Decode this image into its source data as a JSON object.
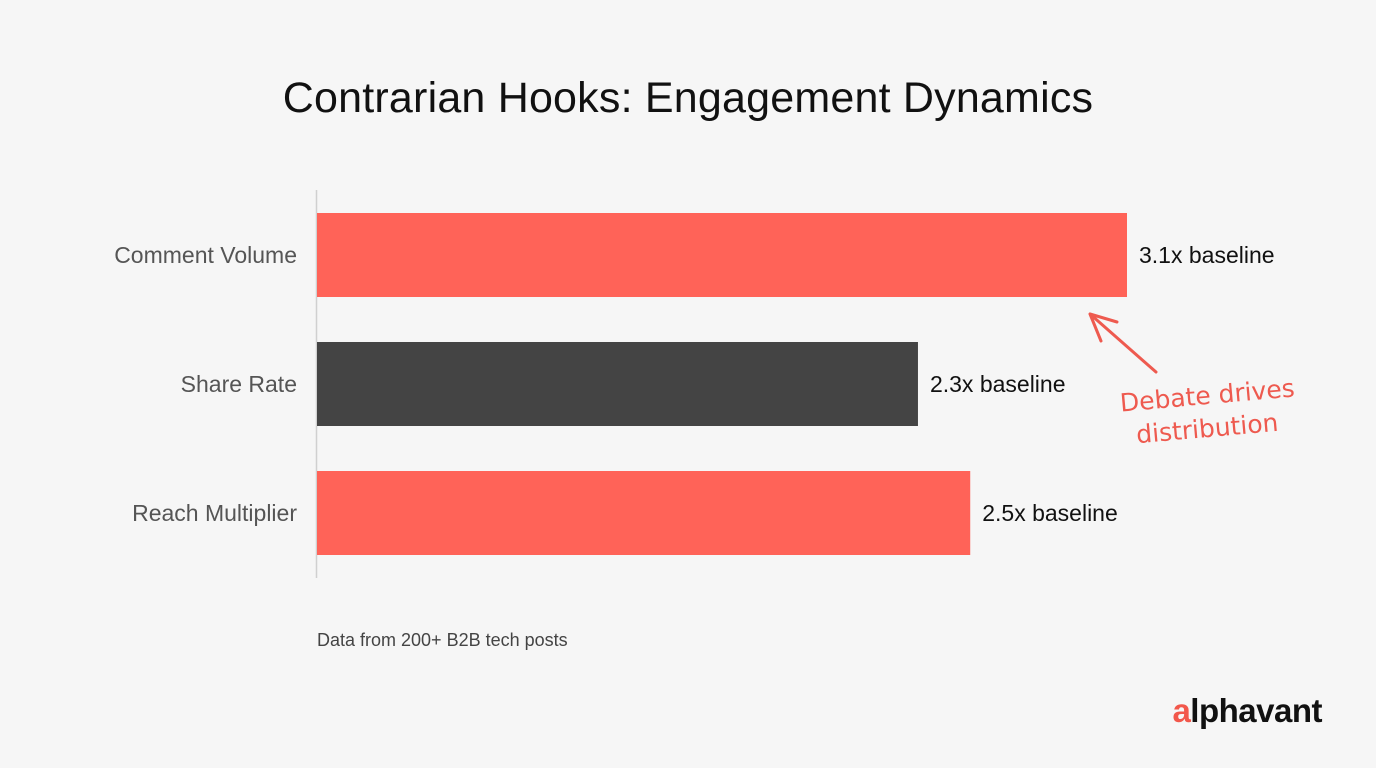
{
  "title": "Contrarian Hooks: Engagement Dynamics",
  "footnote": "Data from 200+ B2B tech posts",
  "logo": {
    "accent": "a",
    "rest": "lphavant",
    "accent_color": "#f2574b"
  },
  "annotation": {
    "line1": "Debate drives",
    "line2": "distribution",
    "color": "#ee5a4f"
  },
  "chart_data": {
    "type": "bar",
    "orientation": "horizontal",
    "categories": [
      "Comment Volume",
      "Share Rate",
      "Reach Multiplier"
    ],
    "values": [
      3.1,
      2.3,
      2.5
    ],
    "value_labels": [
      "3.1x baseline",
      "2.3x baseline",
      "2.5x baseline"
    ],
    "bar_colors": [
      "#ff6358",
      "#444444",
      "#ff6358"
    ],
    "xlim": [
      0,
      3.1
    ],
    "grid": false,
    "legend": "none"
  }
}
